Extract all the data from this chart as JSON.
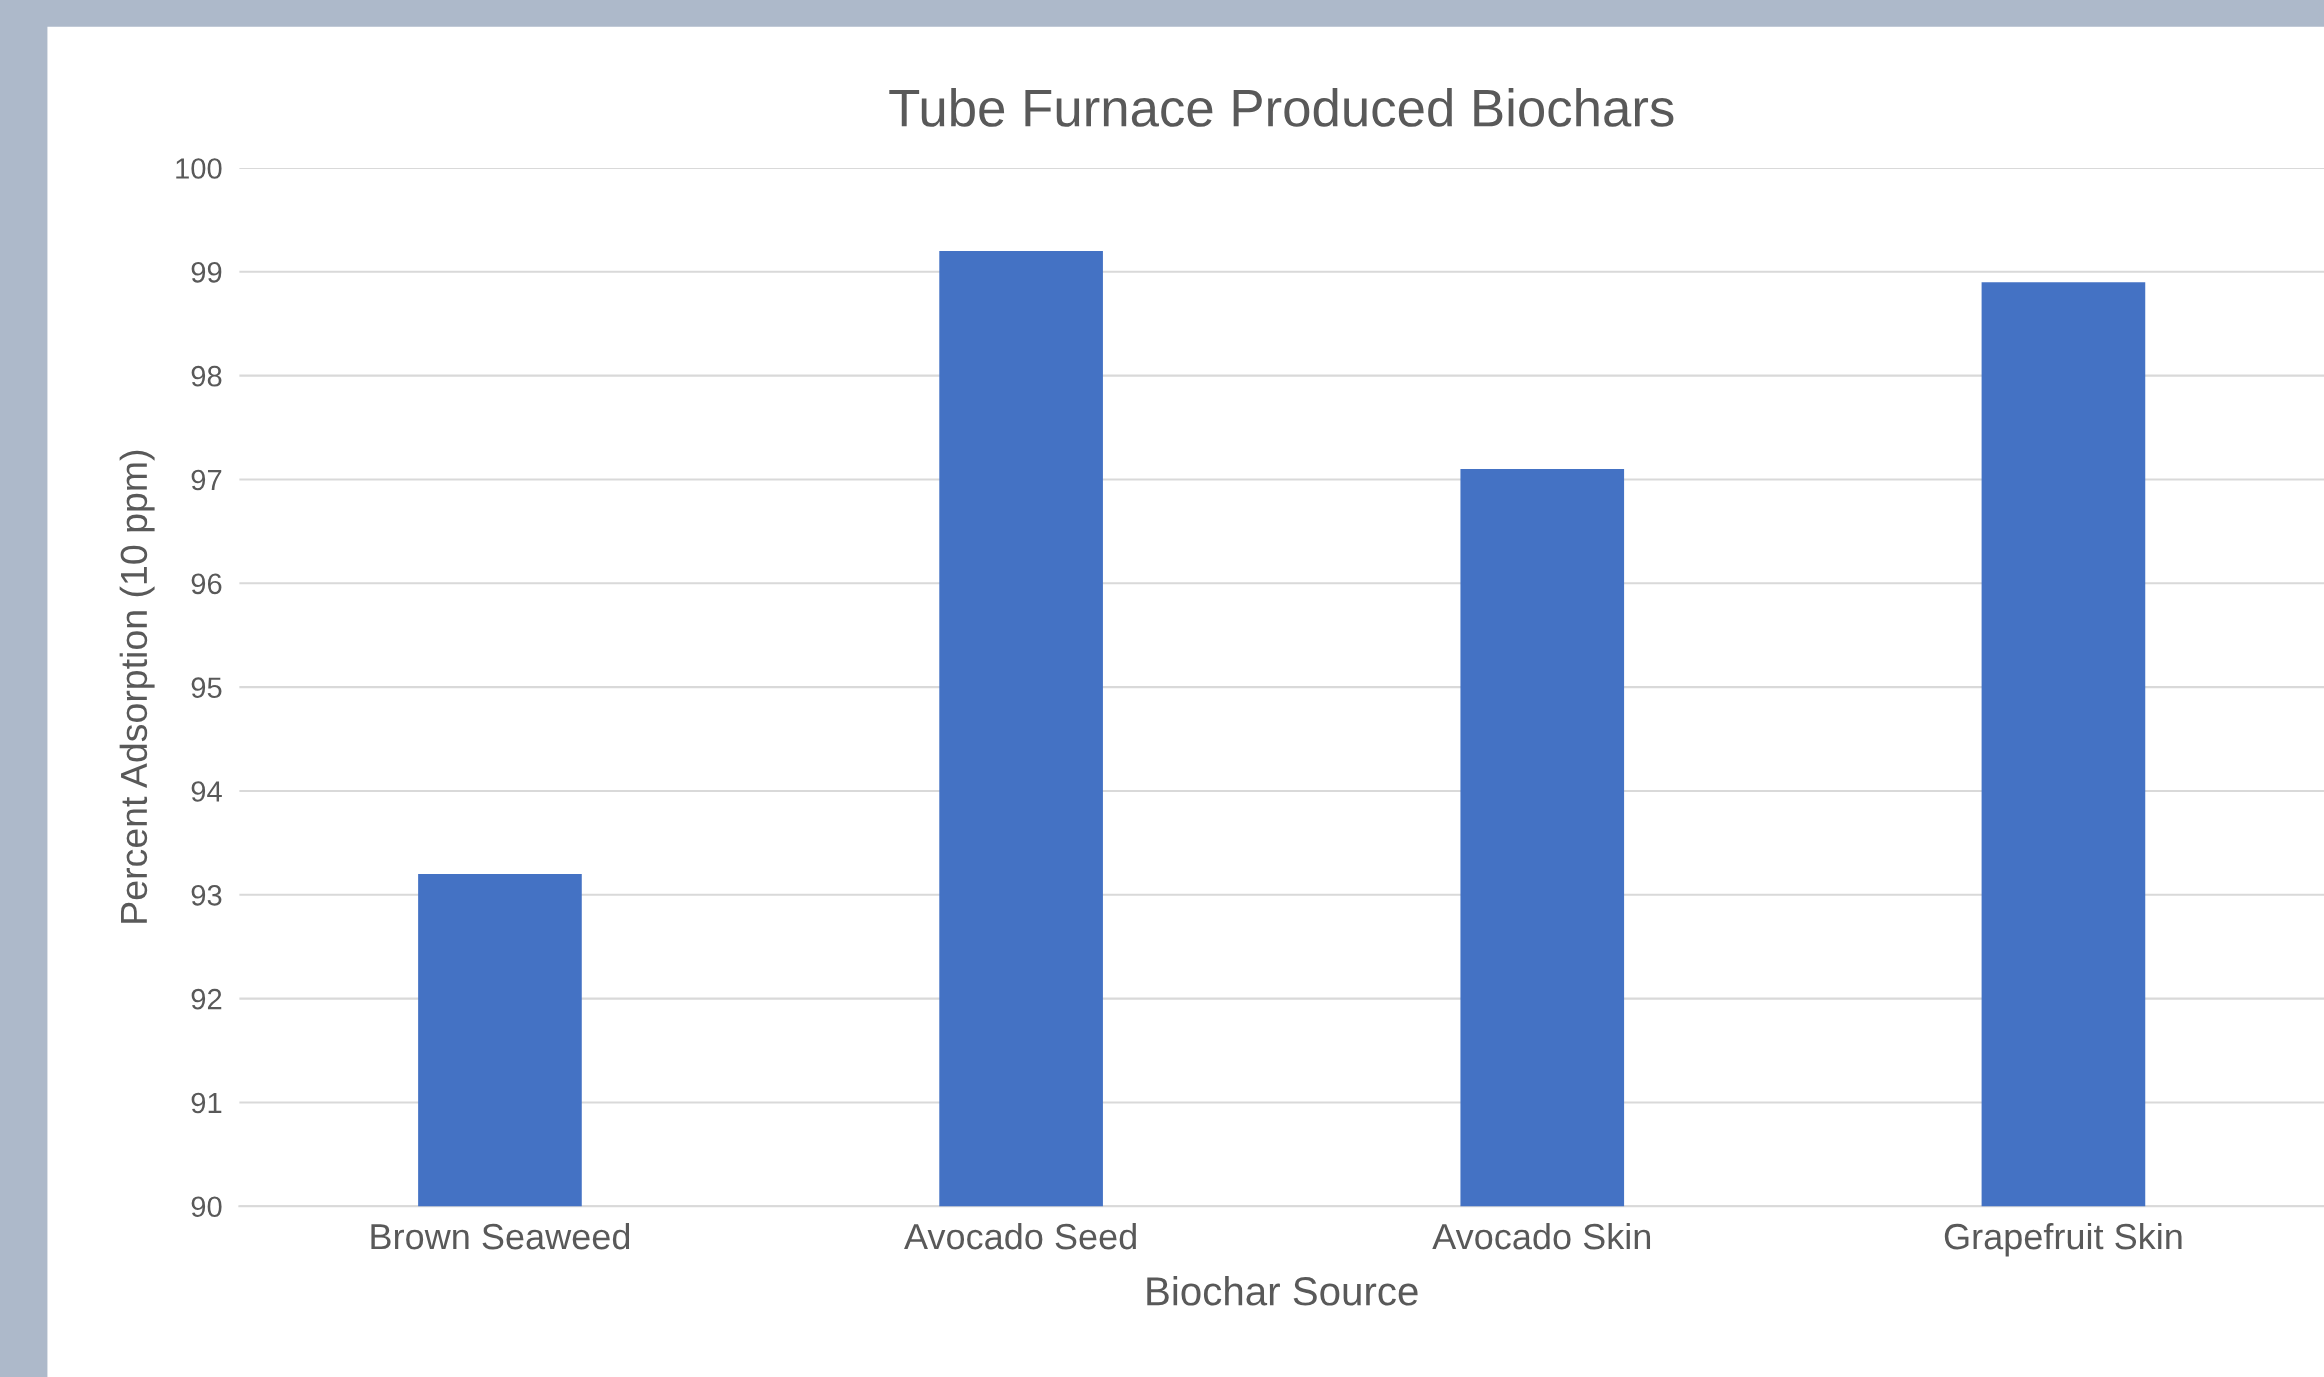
{
  "chart_data": {
    "type": "bar",
    "title": "Tube Furnace Produced Biochars",
    "xlabel": "Biochar Source",
    "ylabel": "Percent Adsorption (10 ppm)",
    "categories": [
      "Brown Seaweed",
      "Avocado Seed",
      "Avocado Skin",
      "Grapefruit Skin"
    ],
    "values": [
      93.2,
      99.2,
      97.1,
      98.9
    ],
    "color": "#4472c4",
    "ylim": [
      90,
      100
    ],
    "yticks": [
      90,
      91,
      92,
      93,
      94,
      95,
      96,
      97,
      98,
      99,
      100
    ],
    "grid": "y",
    "legend": false
  }
}
